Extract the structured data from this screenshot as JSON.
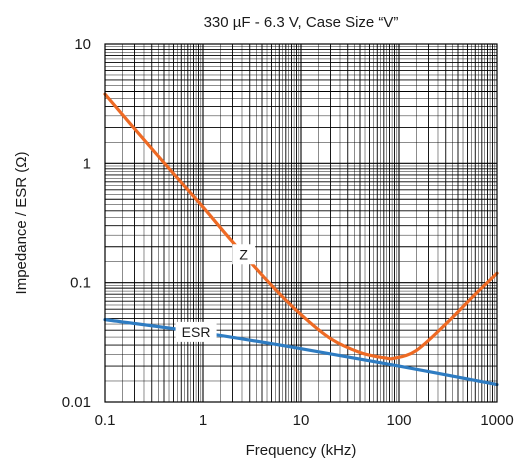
{
  "chart_data": {
    "type": "line",
    "title": "330 µF - 6.3 V, Case Size “V”",
    "xlabel": "Frequency (kHz)",
    "ylabel": "Impedance / ESR (Ω)",
    "x_scale": "log",
    "y_scale": "log",
    "xlim": [
      0.1,
      1000
    ],
    "ylim": [
      0.01,
      10
    ],
    "x_ticks": [
      0.1,
      1,
      10,
      100,
      1000
    ],
    "x_tick_labels": [
      "0.1",
      "1",
      "10",
      "100",
      "1000"
    ],
    "y_ticks": [
      0.01,
      0.1,
      1,
      10
    ],
    "y_tick_labels": [
      "0.01",
      "0.1",
      "1",
      "10"
    ],
    "grid": true,
    "series": [
      {
        "name": "Z",
        "color": "#ee6a24",
        "x": [
          0.1,
          0.2,
          0.5,
          1,
          2,
          5,
          10,
          20,
          40,
          70,
          90,
          150,
          300,
          600,
          1000
        ],
        "y": [
          3.8,
          1.95,
          0.82,
          0.43,
          0.22,
          0.095,
          0.054,
          0.034,
          0.026,
          0.0235,
          0.0233,
          0.027,
          0.045,
          0.08,
          0.12
        ]
      },
      {
        "name": "ESR",
        "color": "#2e7cc2",
        "x": [
          0.1,
          1,
          10,
          100,
          1000
        ],
        "y": [
          0.049,
          0.038,
          0.028,
          0.02,
          0.014
        ]
      }
    ],
    "annotations": [
      {
        "text": "Z",
        "series": "Z",
        "at_x": 2.6
      },
      {
        "text": "ESR",
        "series": "ESR",
        "at_x": 0.85
      }
    ]
  }
}
